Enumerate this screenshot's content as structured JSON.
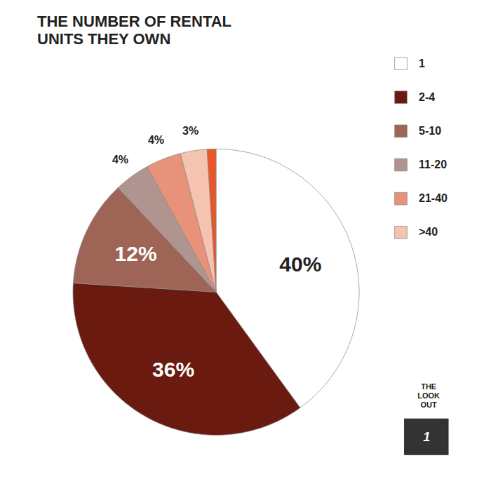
{
  "chart_data": {
    "type": "pie",
    "title": "THE NUMBER OF RENTAL\nUNITS THEY OWN",
    "categories": [
      "1",
      "2-4",
      "5-10",
      "11-20",
      "21-40",
      ">40",
      null
    ],
    "values": [
      40,
      36,
      12,
      4,
      4,
      3,
      1
    ],
    "value_labels": [
      "40%",
      "36%",
      "12%",
      "4%",
      "4%",
      "3%",
      null
    ],
    "colors": [
      "#FFFFFF",
      "#6B1A10",
      "#9E6455",
      "#B09490",
      "#E8927A",
      "#F5C3B0",
      "#E8562A"
    ],
    "legend": "upper right",
    "data_labels": true,
    "annotations": [
      "THE\nLOOK\nOUT",
      "1"
    ]
  }
}
